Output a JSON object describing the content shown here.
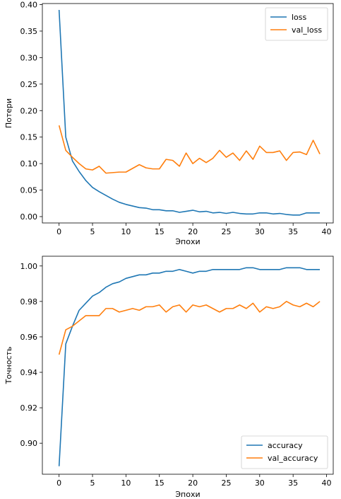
{
  "chart_data": [
    {
      "type": "line",
      "xlabel": "Эпохи",
      "ylabel": "Потери",
      "xlim": [
        -2.5,
        41
      ],
      "ylim": [
        -0.012,
        0.402
      ],
      "xticks": [
        0,
        5,
        10,
        15,
        20,
        25,
        30,
        35,
        40
      ],
      "yticks": [
        0.0,
        0.05,
        0.1,
        0.15,
        0.2,
        0.25,
        0.3,
        0.35,
        0.4
      ],
      "ytick_labels": [
        "0.00",
        "0.05",
        "0.10",
        "0.15",
        "0.20",
        "0.25",
        "0.30",
        "0.35",
        "0.40"
      ],
      "legend_position": "top-right",
      "x": [
        0,
        1,
        2,
        3,
        4,
        5,
        6,
        7,
        8,
        9,
        10,
        11,
        12,
        13,
        14,
        15,
        16,
        17,
        18,
        19,
        20,
        21,
        22,
        23,
        24,
        25,
        26,
        27,
        28,
        29,
        30,
        31,
        32,
        33,
        34,
        35,
        36,
        37,
        38,
        39
      ],
      "series": [
        {
          "name": "loss",
          "color": "#1f77b4",
          "values": [
            0.39,
            0.15,
            0.105,
            0.085,
            0.068,
            0.055,
            0.047,
            0.04,
            0.033,
            0.027,
            0.023,
            0.02,
            0.017,
            0.016,
            0.013,
            0.013,
            0.011,
            0.011,
            0.008,
            0.01,
            0.012,
            0.009,
            0.01,
            0.007,
            0.008,
            0.006,
            0.008,
            0.006,
            0.005,
            0.005,
            0.007,
            0.007,
            0.005,
            0.006,
            0.004,
            0.003,
            0.003,
            0.007,
            0.007,
            0.007
          ]
        },
        {
          "name": "val_loss",
          "color": "#ff7f0e",
          "values": [
            0.172,
            0.125,
            0.112,
            0.1,
            0.09,
            0.088,
            0.095,
            0.082,
            0.083,
            0.084,
            0.084,
            0.091,
            0.098,
            0.092,
            0.09,
            0.09,
            0.108,
            0.106,
            0.095,
            0.12,
            0.1,
            0.11,
            0.102,
            0.11,
            0.125,
            0.112,
            0.12,
            0.106,
            0.124,
            0.108,
            0.133,
            0.121,
            0.121,
            0.124,
            0.106,
            0.121,
            0.122,
            0.117,
            0.144,
            0.118
          ]
        }
      ]
    },
    {
      "type": "line",
      "xlabel": "Эпохи",
      "ylabel": "Точность",
      "xlim": [
        -2.5,
        41
      ],
      "ylim": [
        0.8825,
        1.0055
      ],
      "xticks": [
        0,
        5,
        10,
        15,
        20,
        25,
        30,
        35,
        40
      ],
      "yticks": [
        0.9,
        0.92,
        0.94,
        0.96,
        0.98,
        1.0
      ],
      "ytick_labels": [
        "0.90",
        "0.92",
        "0.94",
        "0.96",
        "0.98",
        "1.00"
      ],
      "legend_position": "bottom-right",
      "x": [
        0,
        1,
        2,
        3,
        4,
        5,
        6,
        7,
        8,
        9,
        10,
        11,
        12,
        13,
        14,
        15,
        16,
        17,
        18,
        19,
        20,
        21,
        22,
        23,
        24,
        25,
        26,
        27,
        28,
        29,
        30,
        31,
        32,
        33,
        34,
        35,
        36,
        37,
        38,
        39
      ],
      "series": [
        {
          "name": "accuracy",
          "color": "#1f77b4",
          "values": [
            0.887,
            0.956,
            0.966,
            0.975,
            0.979,
            0.983,
            0.985,
            0.988,
            0.99,
            0.991,
            0.993,
            0.994,
            0.995,
            0.995,
            0.996,
            0.996,
            0.997,
            0.997,
            0.998,
            0.997,
            0.996,
            0.997,
            0.997,
            0.998,
            0.998,
            0.998,
            0.998,
            0.998,
            0.999,
            0.999,
            0.998,
            0.998,
            0.998,
            0.998,
            0.999,
            0.999,
            0.999,
            0.998,
            0.998,
            0.998
          ]
        },
        {
          "name": "val_accuracy",
          "color": "#ff7f0e",
          "values": [
            0.95,
            0.964,
            0.966,
            0.969,
            0.972,
            0.972,
            0.972,
            0.976,
            0.976,
            0.974,
            0.975,
            0.976,
            0.975,
            0.977,
            0.977,
            0.978,
            0.974,
            0.977,
            0.978,
            0.974,
            0.978,
            0.977,
            0.978,
            0.976,
            0.974,
            0.976,
            0.976,
            0.978,
            0.976,
            0.979,
            0.974,
            0.977,
            0.976,
            0.977,
            0.98,
            0.978,
            0.977,
            0.979,
            0.977,
            0.98
          ]
        }
      ]
    }
  ]
}
